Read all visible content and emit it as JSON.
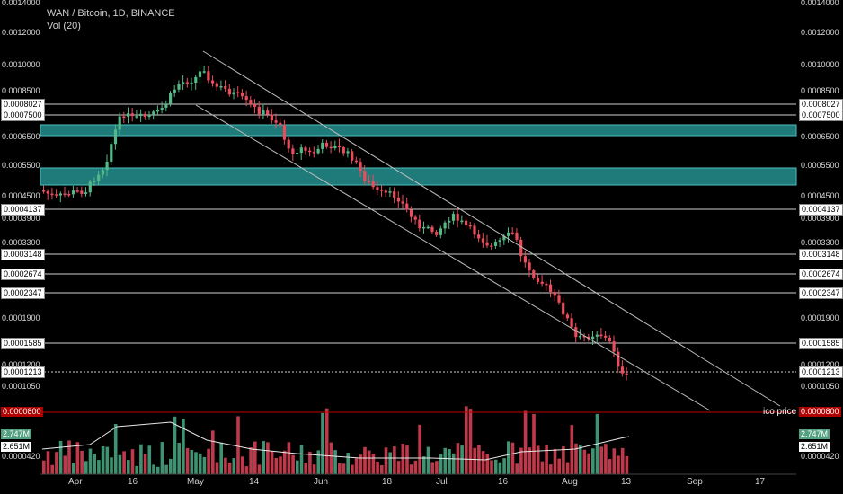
{
  "header": {
    "title": "WAN / Bitcoin, 1D, BINANCE",
    "indicator": "Vol (20)"
  },
  "y_axis": {
    "left_ticks": [
      "0.0014000",
      "0.0012000",
      "0.0010000",
      "0.0008500",
      "0.0006500",
      "0.0005500",
      "0.0004500",
      "0.0003900",
      "0.0003300",
      "0.0001900",
      "0.0001200",
      "0.0001050",
      "0.0000420"
    ],
    "right_ticks": [
      "0.0014000",
      "0.0012000",
      "0.0010000",
      "0.0008500",
      "0.0007500",
      "0.0006500",
      "0.0005500",
      "0.0004500",
      "0.0003900",
      "0.0003300",
      "0.0001900",
      "0.0001200",
      "0.0001050",
      "0.0000420"
    ],
    "levels": [
      "0.0008027",
      "0.0007500",
      "0.0004137",
      "0.0003148",
      "0.0002674",
      "0.0002347",
      "0.0001585",
      "0.0001213"
    ]
  },
  "ico": {
    "value": "0.0000800",
    "label": "ico price"
  },
  "volume": {
    "current": "2.747M",
    "ma": "2.651M"
  },
  "x_axis": {
    "labels": [
      "Apr",
      "16",
      "May",
      "14",
      "Jun",
      "18",
      "Jul",
      "16",
      "Aug",
      "13",
      "Sep",
      "17"
    ]
  },
  "colors": {
    "up": "#53b987",
    "down": "#eb4d5c",
    "zone": "#1f7a7a",
    "ico_line": "#c00000"
  }
}
